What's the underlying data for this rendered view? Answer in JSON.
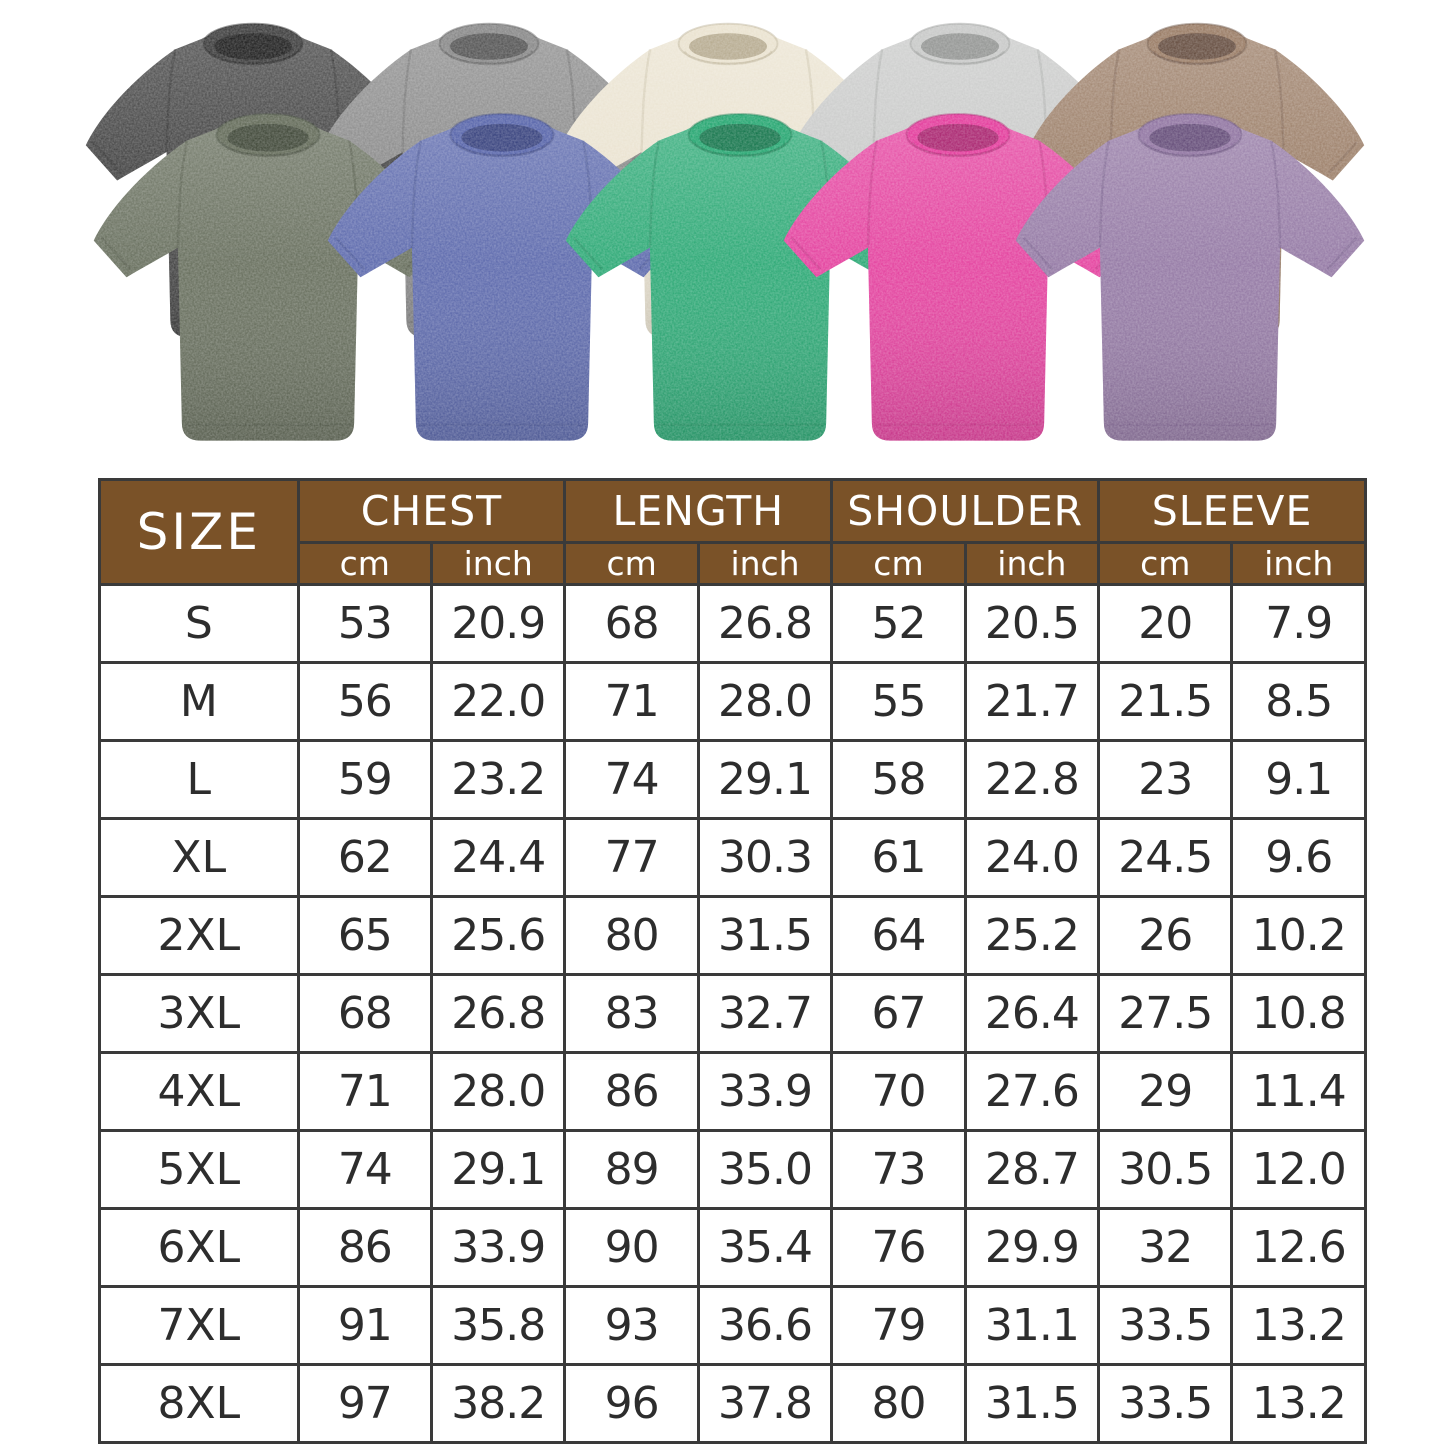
{
  "gallery": {
    "description": "ten washed oversized t-shirts, two overlapping rows",
    "shirts": [
      {
        "name": "black-washed",
        "row": "back",
        "body": "#343434",
        "dark": "#151515"
      },
      {
        "name": "gray-washed",
        "row": "back",
        "body": "#828282",
        "dark": "#4d4d4d"
      },
      {
        "name": "cream-washed",
        "row": "back",
        "body": "#e9e1cd",
        "dark": "#b4a88c"
      },
      {
        "name": "light-gray-washed",
        "row": "back",
        "body": "#c5c6c5",
        "dark": "#8f918f"
      },
      {
        "name": "brown-washed",
        "row": "back",
        "body": "#95765e",
        "dark": "#5f4638"
      },
      {
        "name": "army-green-washed",
        "row": "front",
        "body": "#5b6350",
        "dark": "#384030"
      },
      {
        "name": "blue-washed",
        "row": "front",
        "body": "#4f5da6",
        "dark": "#2f3a78"
      },
      {
        "name": "green-washed",
        "row": "front",
        "body": "#1ba26a",
        "dark": "#0c7045"
      },
      {
        "name": "hot-pink-washed",
        "row": "front",
        "body": "#e23297",
        "dark": "#a61c6a"
      },
      {
        "name": "purple-washed",
        "row": "front",
        "body": "#8b6e9d",
        "dark": "#5e4573"
      }
    ]
  },
  "size_chart": {
    "style": {
      "header_bg": "#7a5228",
      "header_text": "#ffffff",
      "border": "#3a3a3a",
      "cell_text": "#2d2d2d",
      "cell_bg": "#ffffff"
    },
    "header": {
      "size_label": "SIZE",
      "groups": [
        {
          "label": "CHEST"
        },
        {
          "label": "LENGTH"
        },
        {
          "label": "SHOULDER"
        },
        {
          "label": "SLEEVE"
        }
      ],
      "units": {
        "cm": "cm",
        "inch": "inch"
      }
    },
    "rows": [
      {
        "size": "S",
        "values": [
          "53",
          "20.9",
          "68",
          "26.8",
          "52",
          "20.5",
          "20",
          "7.9"
        ]
      },
      {
        "size": "M",
        "values": [
          "56",
          "22.0",
          "71",
          "28.0",
          "55",
          "21.7",
          "21.5",
          "8.5"
        ]
      },
      {
        "size": "L",
        "values": [
          "59",
          "23.2",
          "74",
          "29.1",
          "58",
          "22.8",
          "23",
          "9.1"
        ]
      },
      {
        "size": "XL",
        "values": [
          "62",
          "24.4",
          "77",
          "30.3",
          "61",
          "24.0",
          "24.5",
          "9.6"
        ]
      },
      {
        "size": "2XL",
        "values": [
          "65",
          "25.6",
          "80",
          "31.5",
          "64",
          "25.2",
          "26",
          "10.2"
        ]
      },
      {
        "size": "3XL",
        "values": [
          "68",
          "26.8",
          "83",
          "32.7",
          "67",
          "26.4",
          "27.5",
          "10.8"
        ]
      },
      {
        "size": "4XL",
        "values": [
          "71",
          "28.0",
          "86",
          "33.9",
          "70",
          "27.6",
          "29",
          "11.4"
        ]
      },
      {
        "size": "5XL",
        "values": [
          "74",
          "29.1",
          "89",
          "35.0",
          "73",
          "28.7",
          "30.5",
          "12.0"
        ]
      },
      {
        "size": "6XL",
        "values": [
          "86",
          "33.9",
          "90",
          "35.4",
          "76",
          "29.9",
          "32",
          "12.6"
        ]
      },
      {
        "size": "7XL",
        "values": [
          "91",
          "35.8",
          "93",
          "36.6",
          "79",
          "31.1",
          "33.5",
          "13.2"
        ]
      },
      {
        "size": "8XL",
        "values": [
          "97",
          "38.2",
          "96",
          "37.8",
          "80",
          "31.5",
          "33.5",
          "13.2"
        ]
      }
    ]
  },
  "chart_data": {
    "type": "table",
    "title": "T-shirt size chart",
    "columns": [
      "SIZE",
      "CHEST cm",
      "CHEST inch",
      "LENGTH cm",
      "LENGTH inch",
      "SHOULDER cm",
      "SHOULDER inch",
      "SLEEVE cm",
      "SLEEVE inch"
    ],
    "rows": [
      [
        "S",
        "53",
        "20.9",
        "68",
        "26.8",
        "52",
        "20.5",
        "20",
        "7.9"
      ],
      [
        "M",
        "56",
        "22.0",
        "71",
        "28.0",
        "55",
        "21.7",
        "21.5",
        "8.5"
      ],
      [
        "L",
        "59",
        "23.2",
        "74",
        "29.1",
        "58",
        "22.8",
        "23",
        "9.1"
      ],
      [
        "XL",
        "62",
        "24.4",
        "77",
        "30.3",
        "61",
        "24.0",
        "24.5",
        "9.6"
      ],
      [
        "2XL",
        "65",
        "25.6",
        "80",
        "31.5",
        "64",
        "25.2",
        "26",
        "10.2"
      ],
      [
        "3XL",
        "68",
        "26.8",
        "83",
        "32.7",
        "67",
        "26.4",
        "27.5",
        "10.8"
      ],
      [
        "4XL",
        "71",
        "28.0",
        "86",
        "33.9",
        "70",
        "27.6",
        "29",
        "11.4"
      ],
      [
        "5XL",
        "74",
        "29.1",
        "89",
        "35.0",
        "73",
        "28.7",
        "30.5",
        "12.0"
      ],
      [
        "6XL",
        "86",
        "33.9",
        "90",
        "35.4",
        "76",
        "29.9",
        "32",
        "12.6"
      ],
      [
        "7XL",
        "91",
        "35.8",
        "93",
        "36.6",
        "79",
        "31.1",
        "33.5",
        "13.2"
      ],
      [
        "8XL",
        "97",
        "38.2",
        "96",
        "37.8",
        "80",
        "31.5",
        "33.5",
        "13.2"
      ]
    ]
  }
}
